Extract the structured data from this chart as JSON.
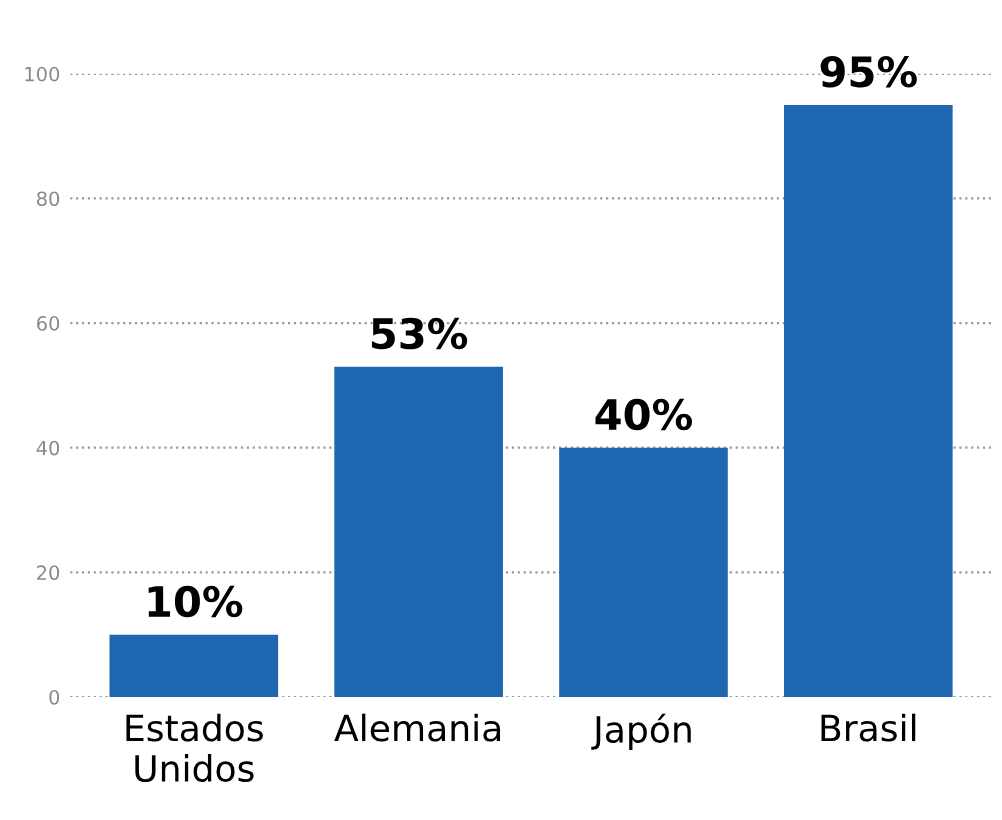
{
  "chart_data": {
    "type": "bar",
    "categories": [
      "Estados Unidos",
      "Alemania",
      "Japón",
      "Brasil"
    ],
    "values": [
      10,
      53,
      40,
      95
    ],
    "value_labels": [
      "10%",
      "53%",
      "40%",
      "95%"
    ],
    "color": "#1f67b1",
    "ylim": [
      0,
      100
    ],
    "yticks": [
      0,
      20,
      40,
      60,
      80,
      100
    ],
    "grid": "y",
    "legend": false
  }
}
